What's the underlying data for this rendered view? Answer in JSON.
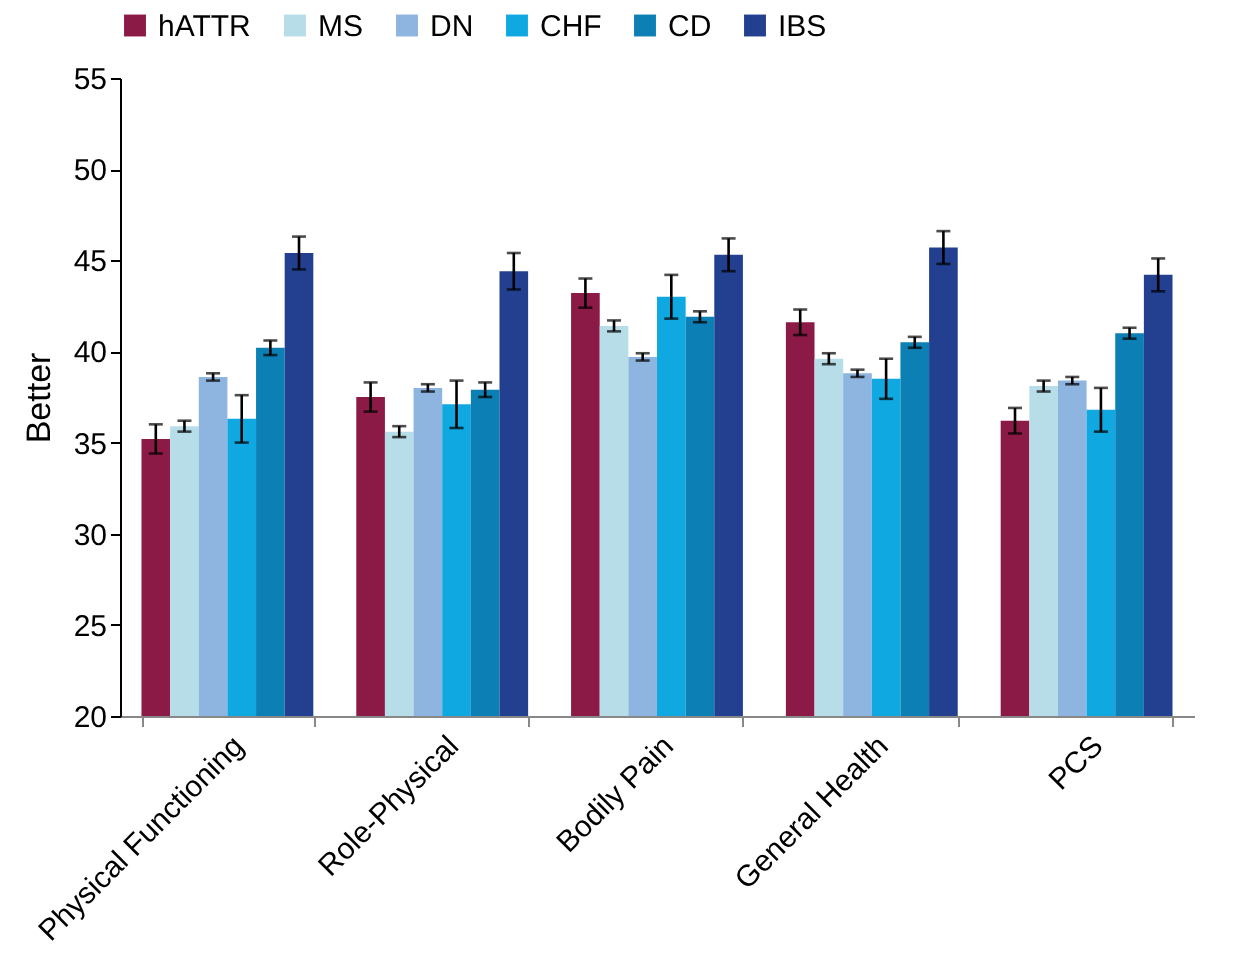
{
  "chart_data": {
    "type": "bar",
    "ylabel": "Better",
    "categories": [
      "Physical Functioning",
      "Role-Physical",
      "Bodily Pain",
      "General Health",
      "PCS"
    ],
    "series": [
      {
        "name": "hATTR",
        "color": "#8b1a46",
        "values": [
          35.2,
          37.5,
          43.2,
          41.6,
          36.2
        ],
        "errors": [
          0.8,
          0.8,
          0.8,
          0.7,
          0.7
        ]
      },
      {
        "name": "MS",
        "color": "#b7dde8",
        "values": [
          35.9,
          35.6,
          41.4,
          39.6,
          38.1
        ],
        "errors": [
          0.3,
          0.3,
          0.3,
          0.3,
          0.3
        ]
      },
      {
        "name": "DN",
        "color": "#8eb4e0",
        "values": [
          38.6,
          38.0,
          39.7,
          38.8,
          38.4
        ],
        "errors": [
          0.2,
          0.2,
          0.2,
          0.2,
          0.2
        ]
      },
      {
        "name": "CHF",
        "color": "#10a8e0",
        "values": [
          36.3,
          37.1,
          43.0,
          38.5,
          36.8
        ],
        "errors": [
          1.3,
          1.3,
          1.2,
          1.1,
          1.2
        ]
      },
      {
        "name": "CD",
        "color": "#0c7fb4",
        "values": [
          40.2,
          37.9,
          41.9,
          40.5,
          41.0
        ],
        "errors": [
          0.4,
          0.4,
          0.3,
          0.3,
          0.3
        ]
      },
      {
        "name": "IBS",
        "color": "#22408f",
        "values": [
          45.4,
          44.4,
          45.3,
          45.7,
          44.2
        ],
        "errors": [
          0.9,
          1.0,
          0.9,
          0.9,
          0.9
        ]
      }
    ],
    "ylim": [
      20,
      55
    ],
    "yticks": [
      20,
      25,
      30,
      35,
      40,
      45,
      50,
      55
    ],
    "grid": false,
    "legend": "top"
  }
}
